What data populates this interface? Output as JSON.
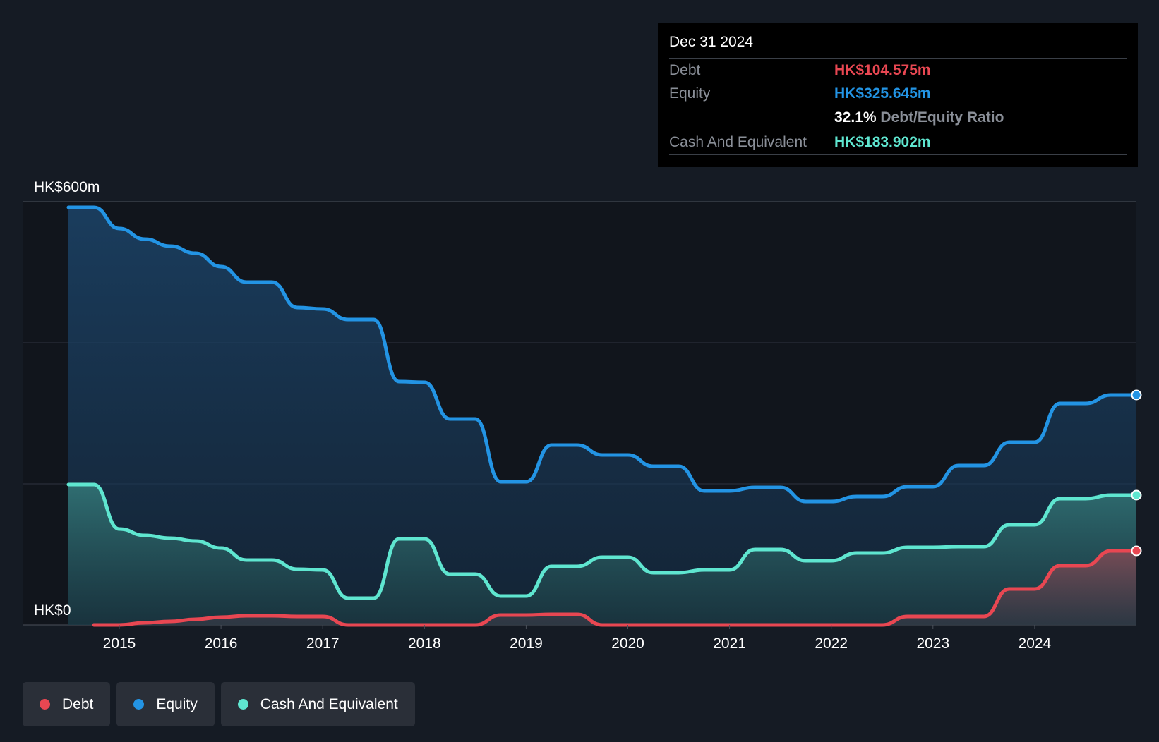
{
  "colors": {
    "debt": "#e84752",
    "equity": "#2394e4",
    "cash": "#5fe6d0",
    "background": "#151b24",
    "plot_background": "#11151c"
  },
  "tooltip": {
    "date": "Dec 31 2024",
    "rows": [
      {
        "label": "Debt",
        "value": "HK$104.575m"
      },
      {
        "label": "Equity",
        "value": "HK$325.645m"
      },
      {
        "label": "",
        "ratio_value": "32.1%",
        "ratio_label": "Debt/Equity Ratio"
      },
      {
        "label": "Cash And Equivalent",
        "value": "HK$183.902m"
      }
    ]
  },
  "legend": [
    {
      "label": "Debt",
      "color_key": "debt"
    },
    {
      "label": "Equity",
      "color_key": "equity"
    },
    {
      "label": "Cash And Equivalent",
      "color_key": "cash"
    }
  ],
  "chart_data": {
    "type": "area",
    "title": "",
    "xlabel": "",
    "ylabel": "",
    "currency_unit": "HK$ millions",
    "ylim": [
      0,
      600
    ],
    "xlim": [
      2014.5,
      2025.0
    ],
    "y_tick_labels": [
      {
        "value": 600,
        "label": "HK$600m"
      },
      {
        "value": 0,
        "label": "HK$0"
      }
    ],
    "y_gridlines": [
      0,
      200,
      400,
      600
    ],
    "x_ticks": [
      {
        "value": 2015,
        "label": "2015"
      },
      {
        "value": 2016,
        "label": "2016"
      },
      {
        "value": 2017,
        "label": "2017"
      },
      {
        "value": 2018,
        "label": "2018"
      },
      {
        "value": 2019,
        "label": "2019"
      },
      {
        "value": 2020,
        "label": "2020"
      },
      {
        "value": 2021,
        "label": "2021"
      },
      {
        "value": 2022,
        "label": "2022"
      },
      {
        "value": 2023,
        "label": "2023"
      },
      {
        "value": 2024,
        "label": "2024"
      }
    ],
    "series": [
      {
        "name": "Equity",
        "color_key": "equity",
        "points": [
          [
            2014.5,
            592
          ],
          [
            2014.75,
            592
          ],
          [
            2015.0,
            562
          ],
          [
            2015.25,
            547
          ],
          [
            2015.5,
            537
          ],
          [
            2015.75,
            527
          ],
          [
            2016.0,
            508
          ],
          [
            2016.25,
            486
          ],
          [
            2016.5,
            486
          ],
          [
            2016.75,
            450
          ],
          [
            2017.0,
            448
          ],
          [
            2017.25,
            433
          ],
          [
            2017.5,
            433
          ],
          [
            2017.75,
            345
          ],
          [
            2018.0,
            344
          ],
          [
            2018.25,
            292
          ],
          [
            2018.5,
            292
          ],
          [
            2018.75,
            203
          ],
          [
            2019.0,
            203
          ],
          [
            2019.25,
            255
          ],
          [
            2019.5,
            255
          ],
          [
            2019.75,
            241
          ],
          [
            2020.0,
            241
          ],
          [
            2020.25,
            225
          ],
          [
            2020.5,
            225
          ],
          [
            2020.75,
            190
          ],
          [
            2021.0,
            190
          ],
          [
            2021.25,
            195
          ],
          [
            2021.5,
            195
          ],
          [
            2021.75,
            175
          ],
          [
            2022.0,
            175
          ],
          [
            2022.25,
            182
          ],
          [
            2022.5,
            182
          ],
          [
            2022.75,
            196
          ],
          [
            2023.0,
            196
          ],
          [
            2023.25,
            226
          ],
          [
            2023.5,
            226
          ],
          [
            2023.75,
            259
          ],
          [
            2024.0,
            259
          ],
          [
            2024.25,
            314
          ],
          [
            2024.5,
            314
          ],
          [
            2024.75,
            326
          ],
          [
            2025.0,
            326
          ]
        ]
      },
      {
        "name": "Cash And Equivalent",
        "color_key": "cash",
        "points": [
          [
            2014.5,
            199
          ],
          [
            2014.75,
            199
          ],
          [
            2015.0,
            136
          ],
          [
            2015.25,
            127
          ],
          [
            2015.5,
            123
          ],
          [
            2015.75,
            119
          ],
          [
            2016.0,
            109
          ],
          [
            2016.25,
            92
          ],
          [
            2016.5,
            92
          ],
          [
            2016.75,
            79
          ],
          [
            2017.0,
            78
          ],
          [
            2017.25,
            38
          ],
          [
            2017.5,
            38
          ],
          [
            2017.75,
            122
          ],
          [
            2018.0,
            122
          ],
          [
            2018.25,
            72
          ],
          [
            2018.5,
            72
          ],
          [
            2018.75,
            41
          ],
          [
            2019.0,
            41
          ],
          [
            2019.25,
            83
          ],
          [
            2019.5,
            83
          ],
          [
            2019.75,
            96
          ],
          [
            2020.0,
            96
          ],
          [
            2020.25,
            74
          ],
          [
            2020.5,
            74
          ],
          [
            2020.75,
            78
          ],
          [
            2021.0,
            78
          ],
          [
            2021.25,
            107
          ],
          [
            2021.5,
            107
          ],
          [
            2021.75,
            91
          ],
          [
            2022.0,
            91
          ],
          [
            2022.25,
            102
          ],
          [
            2022.5,
            102
          ],
          [
            2022.75,
            110
          ],
          [
            2023.0,
            110
          ],
          [
            2023.25,
            111
          ],
          [
            2023.5,
            111
          ],
          [
            2023.75,
            142
          ],
          [
            2024.0,
            142
          ],
          [
            2024.25,
            179
          ],
          [
            2024.5,
            179
          ],
          [
            2024.75,
            184
          ],
          [
            2025.0,
            184
          ]
        ]
      },
      {
        "name": "Debt",
        "color_key": "debt",
        "points": [
          [
            2014.75,
            0
          ],
          [
            2015.0,
            0
          ],
          [
            2015.25,
            3
          ],
          [
            2015.5,
            5
          ],
          [
            2015.75,
            8
          ],
          [
            2016.0,
            11
          ],
          [
            2016.25,
            13
          ],
          [
            2016.5,
            13
          ],
          [
            2016.75,
            12
          ],
          [
            2017.0,
            12
          ],
          [
            2017.25,
            0
          ],
          [
            2017.5,
            0
          ],
          [
            2017.75,
            0
          ],
          [
            2018.0,
            0
          ],
          [
            2018.25,
            0
          ],
          [
            2018.5,
            0
          ],
          [
            2018.75,
            14
          ],
          [
            2019.0,
            14
          ],
          [
            2019.25,
            15
          ],
          [
            2019.5,
            15
          ],
          [
            2019.75,
            0
          ],
          [
            2020.0,
            0
          ],
          [
            2020.25,
            0
          ],
          [
            2020.5,
            0
          ],
          [
            2020.75,
            0
          ],
          [
            2021.0,
            0
          ],
          [
            2021.25,
            0
          ],
          [
            2021.5,
            0
          ],
          [
            2021.75,
            0
          ],
          [
            2022.0,
            0
          ],
          [
            2022.25,
            0
          ],
          [
            2022.5,
            0
          ],
          [
            2022.75,
            12
          ],
          [
            2023.0,
            12
          ],
          [
            2023.25,
            12
          ],
          [
            2023.5,
            12
          ],
          [
            2023.75,
            51
          ],
          [
            2024.0,
            51
          ],
          [
            2024.25,
            84
          ],
          [
            2024.5,
            84
          ],
          [
            2024.75,
            105
          ],
          [
            2025.0,
            105
          ]
        ]
      }
    ]
  }
}
